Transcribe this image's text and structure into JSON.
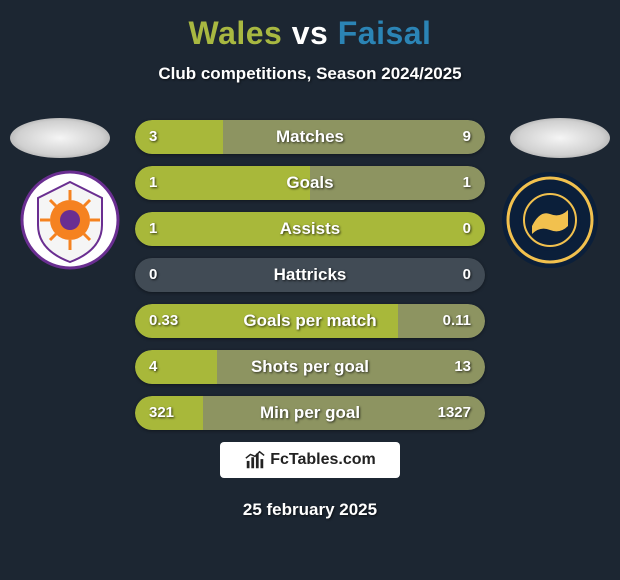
{
  "colors": {
    "background": "#1c2632",
    "title_left": "#a8b841",
    "title_vs": "#ffffff",
    "title_right": "#2b84b5",
    "subtitle": "#ffffff",
    "bar_base": "#414b55",
    "bar_left": "#a8b83a",
    "bar_right": "#8d9461",
    "stat_text": "#ffffff",
    "avatar_bg": "#e8e8e8",
    "branding_bg": "#ffffff",
    "branding_text": "#222222",
    "date_text": "#ffffff"
  },
  "title": {
    "left": "Wales",
    "vs": "vs",
    "right": "Faisal"
  },
  "subtitle": "Club competitions, Season 2024/2025",
  "stats": [
    {
      "label": "Matches",
      "left_val": "3",
      "right_val": "9",
      "left_num": 3,
      "right_num": 9
    },
    {
      "label": "Goals",
      "left_val": "1",
      "right_val": "1",
      "left_num": 1,
      "right_num": 1
    },
    {
      "label": "Assists",
      "left_val": "1",
      "right_val": "0",
      "left_num": 1,
      "right_num": 0
    },
    {
      "label": "Hattricks",
      "left_val": "0",
      "right_val": "0",
      "left_num": 0,
      "right_num": 0
    },
    {
      "label": "Goals per match",
      "left_val": "0.33",
      "right_val": "0.11",
      "left_num": 0.33,
      "right_num": 0.11
    },
    {
      "label": "Shots per goal",
      "left_val": "4",
      "right_val": "13",
      "left_num": 4,
      "right_num": 13
    },
    {
      "label": "Min per goal",
      "left_val": "321",
      "right_val": "1327",
      "left_num": 321,
      "right_num": 1327
    }
  ],
  "branding": "FcTables.com",
  "date": "25 february 2025",
  "bar_layout": {
    "full_width_pct": 100,
    "min_bar_pct": 4
  },
  "badges": {
    "left_alt": "Perth Glory",
    "right_alt": "Central Coast Mariners"
  }
}
